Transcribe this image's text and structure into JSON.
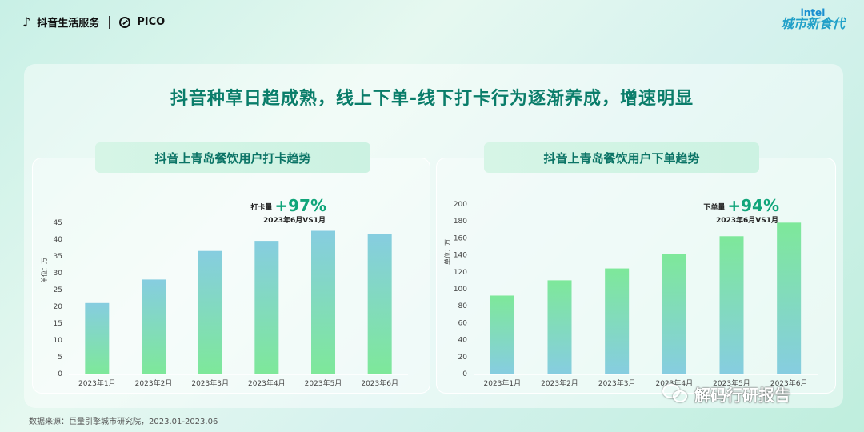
{
  "header": {
    "brand_left_1": "抖音生活服务",
    "brand_left_2": "PICO",
    "brand_right_1": "intel",
    "brand_right_2": "城市新食代"
  },
  "headline": "抖音种草日趋成熟，线上下单-线下打卡行为逐渐养成，增速明显",
  "charts": {
    "left": {
      "title": "抖音上青岛餐饮用户打卡趋势",
      "unit_label": "单位：万",
      "callout_label": "打卡量",
      "callout_value": "+97%",
      "callout_sub": "2023年6月VS1月"
    },
    "right": {
      "title": "抖音上青岛餐饮用户下单趋势",
      "unit_label": "单位：万",
      "callout_label": "下单量",
      "callout_value": "+94%",
      "callout_sub": "2023年6月VS1月"
    }
  },
  "source": "数据来源：巨量引擎城市研究院，2023.01-2023.06",
  "watermark": "解码行研报告",
  "chart_data": [
    {
      "type": "bar",
      "title": "抖音上青岛餐饮用户打卡趋势",
      "ylabel": "单位：万",
      "categories": [
        "2023年1月",
        "2023年2月",
        "2023年3月",
        "2023年4月",
        "2023年5月",
        "2023年6月"
      ],
      "values": [
        21,
        28,
        36.5,
        39.5,
        42.5,
        41.5
      ],
      "ylim": [
        0,
        45
      ],
      "yticks": [
        0,
        5,
        10,
        15,
        20,
        25,
        30,
        35,
        40,
        45
      ],
      "colors": {
        "top": "#86cde0",
        "bottom": "#7ee89a"
      }
    },
    {
      "type": "bar",
      "title": "抖音上青岛餐饮用户下单趋势",
      "ylabel": "单位：万",
      "categories": [
        "2023年1月",
        "2023年2月",
        "2023年3月",
        "2023年4月",
        "2023年5月",
        "2023年6月"
      ],
      "values": [
        92,
        110,
        124,
        141,
        162,
        178
      ],
      "ylim": [
        0,
        200
      ],
      "yticks": [
        0,
        20,
        40,
        60,
        80,
        100,
        120,
        140,
        160,
        180,
        200
      ],
      "colors": {
        "top": "#7ee89a",
        "bottom": "#86cde0"
      }
    }
  ]
}
